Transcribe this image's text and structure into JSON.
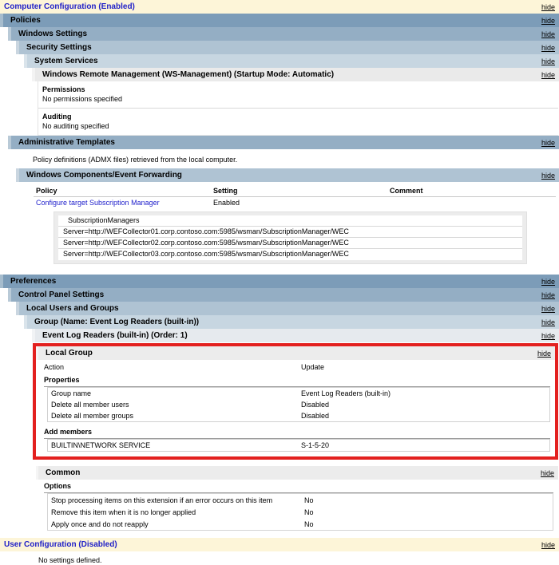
{
  "ui": {
    "hide": "hide"
  },
  "colors": {
    "section_header_yellow": "#fdf5d8",
    "section_header_text_blue": "#2121c8",
    "level1_bar_blue": "#7c9cb8",
    "level2_bar_blue": "#94aec4",
    "level3_bar_blue": "#afc3d3",
    "level4_bar_blue": "#c7d6e1",
    "gray_bar": "#eaeaea",
    "policy_link_blue": "#2222cc",
    "highlight_red": "#e3201f"
  },
  "computer_configuration": {
    "title": "Computer Configuration (Enabled)",
    "policies": {
      "title": "Policies",
      "windows_settings": {
        "title": "Windows Settings",
        "security_settings": {
          "title": "Security Settings",
          "system_services": {
            "title": "System Services",
            "wrm": {
              "title": "Windows Remote Management (WS-Management) (Startup Mode: Automatic)",
              "permissions_label": "Permissions",
              "permissions_value": "No permissions specified",
              "auditing_label": "Auditing",
              "auditing_value": "No auditing specified"
            }
          }
        }
      },
      "administrative_templates": {
        "title": "Administrative Templates",
        "description": "Policy definitions (ADMX files) retrieved from the local computer.",
        "event_forwarding": {
          "title": "Windows Components/Event Forwarding",
          "columns": {
            "policy": "Policy",
            "setting": "Setting",
            "comment": "Comment"
          },
          "policy_name": "Configure target Subscription Manager",
          "policy_setting": "Enabled",
          "policy_comment": "",
          "sub_table": {
            "header": "SubscriptionManagers",
            "rows": [
              "Server=http://WEFCollector01.corp.contoso.com:5985/wsman/SubscriptionManager/WEC",
              "Server=http://WEFCollector02.corp.contoso.com:5985/wsman/SubscriptionManager/WEC",
              "Server=http://WEFCollector03.corp.contoso.com:5985/wsman/SubscriptionManager/WEC"
            ]
          }
        }
      }
    },
    "preferences": {
      "title": "Preferences",
      "control_panel_settings": {
        "title": "Control Panel Settings",
        "local_users_and_groups": {
          "title": "Local Users and Groups",
          "group": {
            "title": "Group (Name: Event Log Readers (built-in))",
            "order_item": {
              "title": "Event Log Readers (built-in) (Order: 1)",
              "local_group": {
                "title": "Local Group",
                "action_label": "Action",
                "action_value": "Update",
                "properties_label": "Properties",
                "rows": [
                  {
                    "label": "Group name",
                    "value": "Event Log Readers (built-in)"
                  },
                  {
                    "label": "Delete all member users",
                    "value": "Disabled"
                  },
                  {
                    "label": "Delete all member groups",
                    "value": "Disabled"
                  }
                ],
                "add_members_label": "Add members",
                "member_name": "BUILTIN\\NETWORK SERVICE",
                "member_sid": "S-1-5-20"
              },
              "common": {
                "title": "Common",
                "options_label": "Options",
                "rows": [
                  {
                    "label": "Stop processing items on this extension if an error occurs on this item",
                    "value": "No"
                  },
                  {
                    "label": "Remove this item when it is no longer applied",
                    "value": "No"
                  },
                  {
                    "label": "Apply once and do not reapply",
                    "value": "No"
                  }
                ]
              }
            }
          }
        }
      }
    }
  },
  "user_configuration": {
    "title": "User Configuration (Disabled)",
    "no_settings": "No settings defined."
  }
}
